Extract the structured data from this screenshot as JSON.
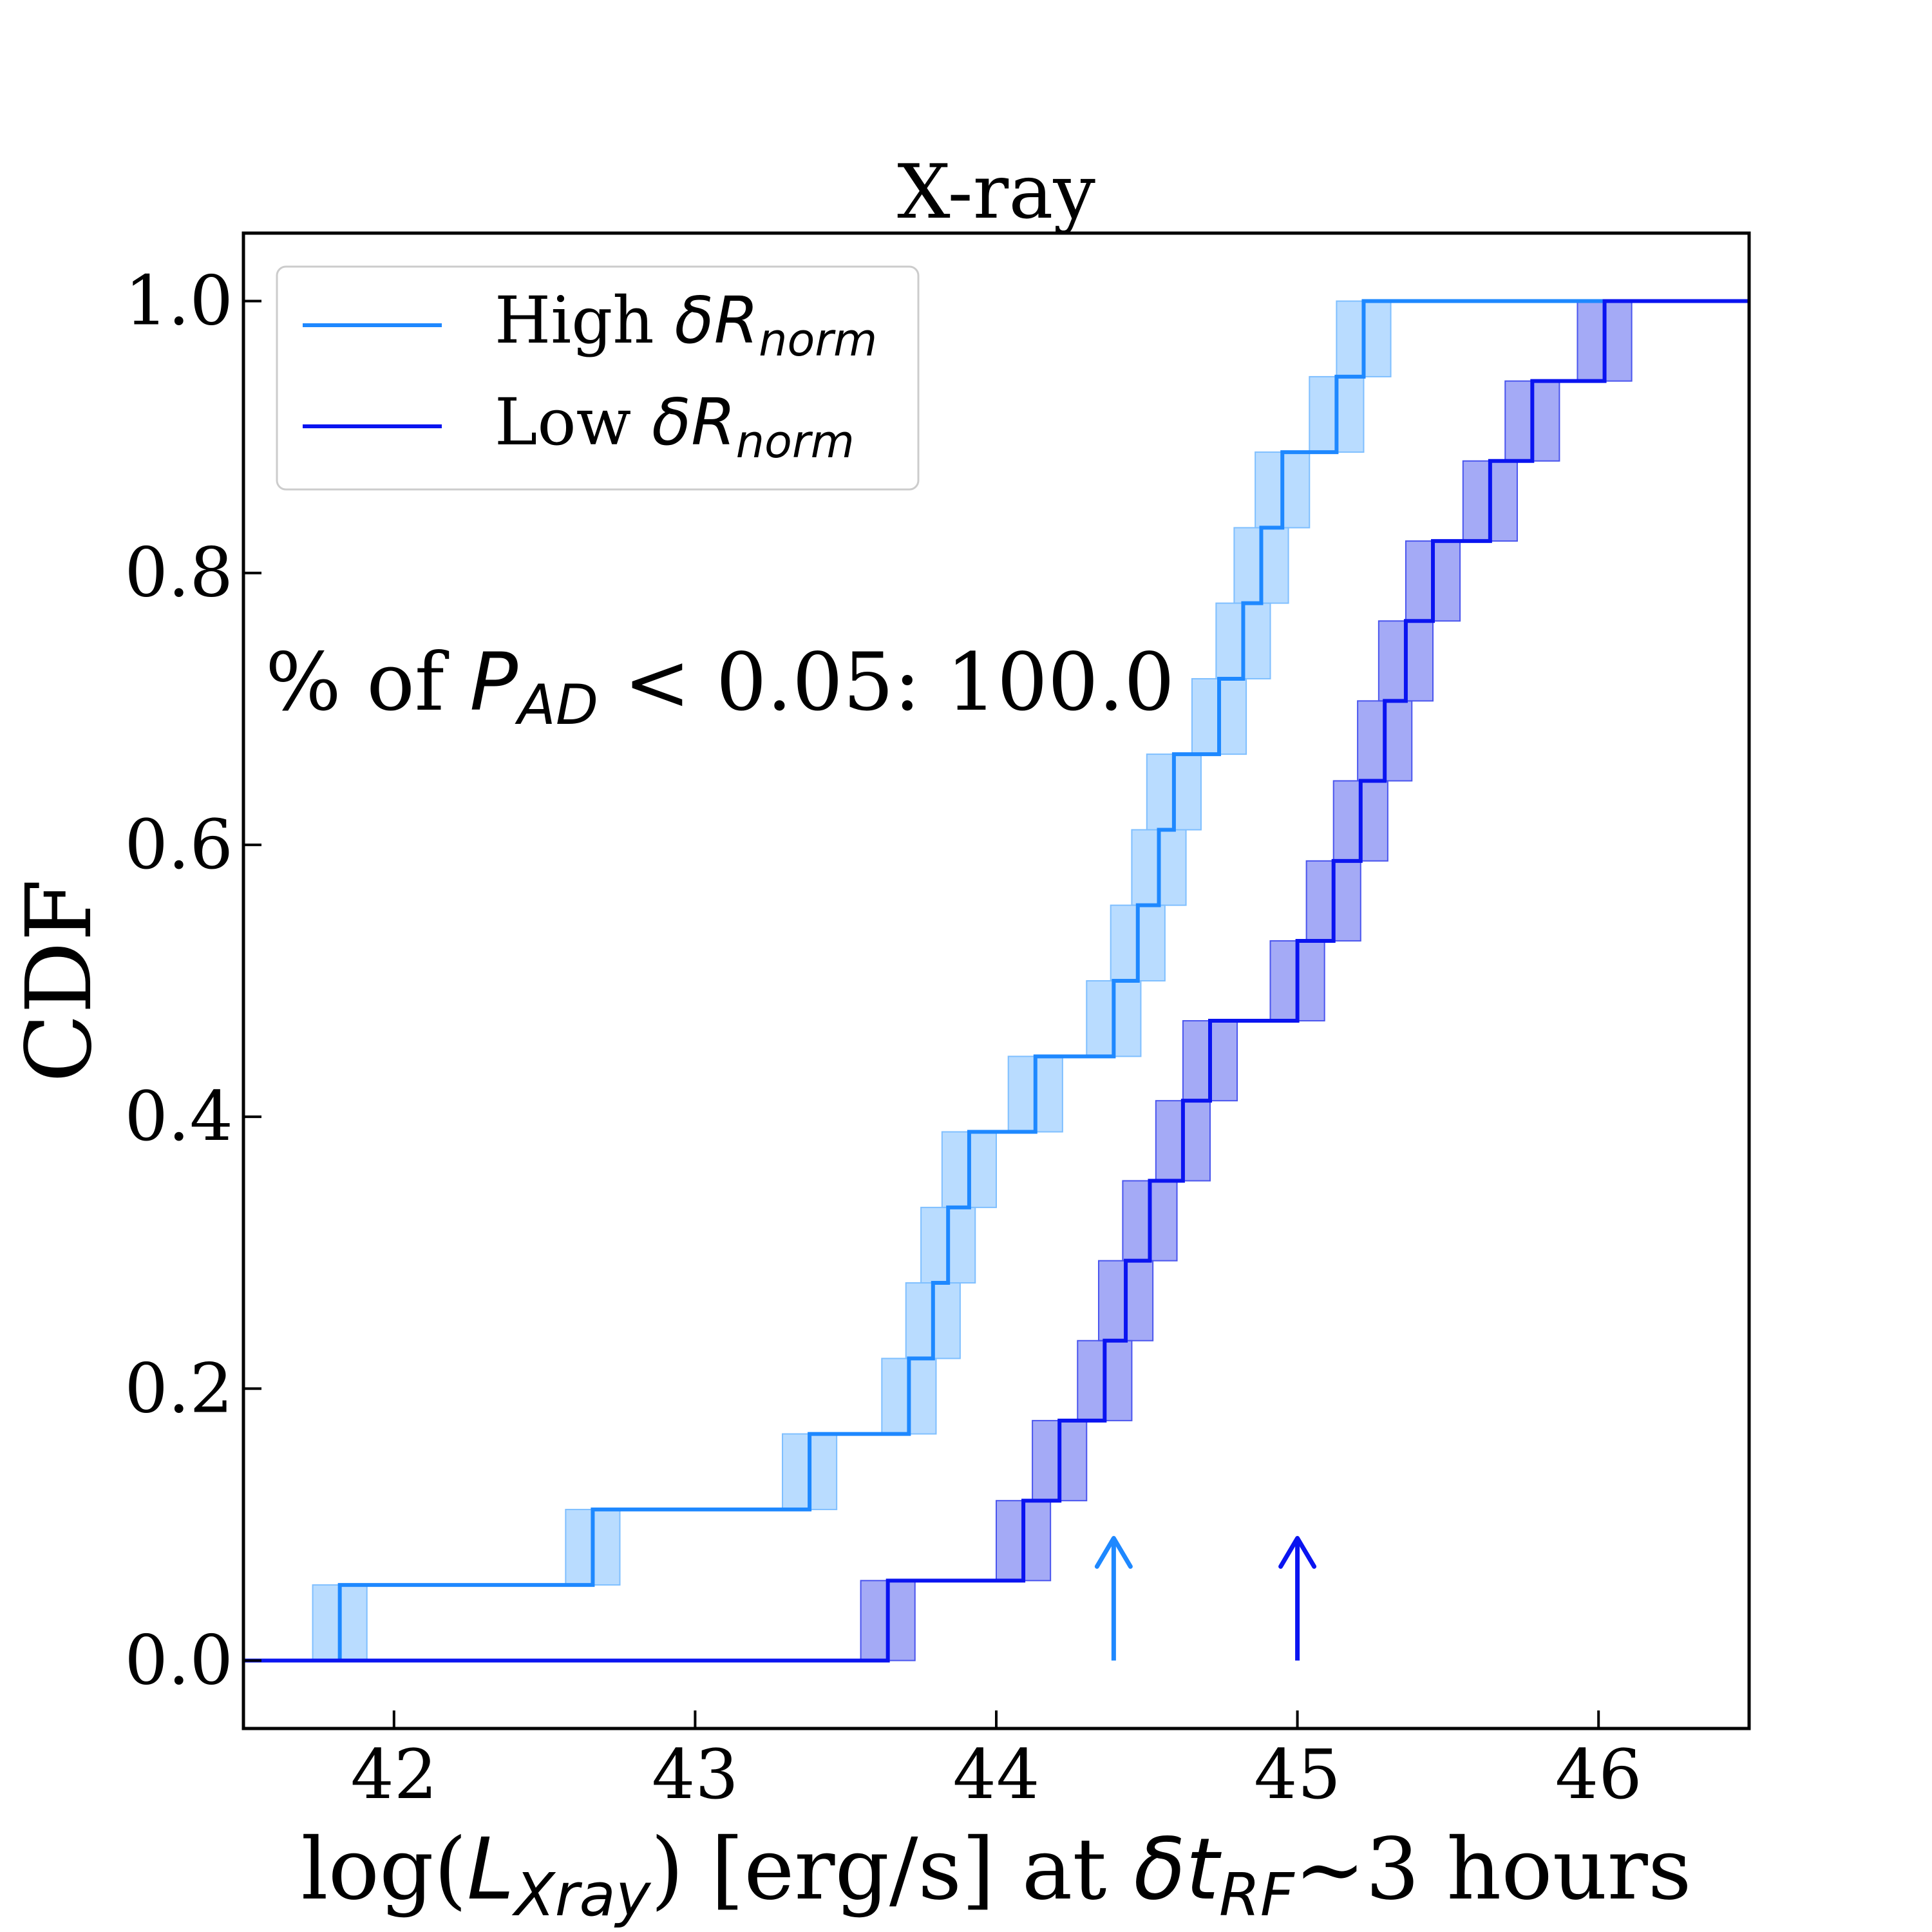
{
  "chart_data": {
    "type": "line",
    "step": "post",
    "title": "X-ray",
    "ylabel": "CDF",
    "xlabel": {
      "prefix": "log(",
      "var": "L",
      "var_sub": "Xray",
      "middle": ") [erg/s] at ",
      "delta_var": "δt",
      "delta_sub": "RF",
      "suffix": "~3 hours"
    },
    "xlim": [
      41.5,
      46.5
    ],
    "ylim": [
      -0.05,
      1.05
    ],
    "xticks": [
      42,
      43,
      44,
      45,
      46
    ],
    "xtick_labels": [
      "42",
      "43",
      "44",
      "45",
      "46"
    ],
    "yticks": [
      0.0,
      0.2,
      0.4,
      0.6,
      0.8,
      1.0
    ],
    "ytick_labels": [
      "0.0",
      "0.2",
      "0.4",
      "0.6",
      "0.8",
      "1.0"
    ],
    "grid": false,
    "legend_position": "upper left",
    "annotation": {
      "prefix": "% of ",
      "var": "P",
      "var_sub": "AD",
      "suffix": " < 0.05: 100.0"
    },
    "series": [
      {
        "key": "high",
        "legend": {
          "prefix": "High ",
          "var": "δR",
          "sub": "norm"
        },
        "color": "#1e88ff",
        "band_color": "#7fbfff",
        "band_width": 0.09,
        "steps": [
          [
            41.82,
            0.0556
          ],
          [
            42.66,
            0.1111
          ],
          [
            43.38,
            0.1667
          ],
          [
            43.71,
            0.2222
          ],
          [
            43.79,
            0.2778
          ],
          [
            43.84,
            0.3333
          ],
          [
            43.91,
            0.3889
          ],
          [
            44.13,
            0.4444
          ],
          [
            44.39,
            0.5
          ],
          [
            44.47,
            0.5556
          ],
          [
            44.54,
            0.6111
          ],
          [
            44.59,
            0.6667
          ],
          [
            44.74,
            0.7222
          ],
          [
            44.82,
            0.7778
          ],
          [
            44.88,
            0.8333
          ],
          [
            44.95,
            0.8889
          ],
          [
            45.13,
            0.9444
          ],
          [
            45.22,
            1.0
          ]
        ]
      },
      {
        "key": "low",
        "legend": {
          "prefix": "Low ",
          "var": "δR",
          "sub": "norm"
        },
        "color": "#0a14f0",
        "band_color": "#4a55ee",
        "band_width": 0.09,
        "steps": [
          [
            43.64,
            0.0588
          ],
          [
            44.09,
            0.1176
          ],
          [
            44.21,
            0.1765
          ],
          [
            44.36,
            0.2353
          ],
          [
            44.43,
            0.2941
          ],
          [
            44.51,
            0.3529
          ],
          [
            44.62,
            0.4118
          ],
          [
            44.71,
            0.4706
          ],
          [
            45.0,
            0.5294
          ],
          [
            45.12,
            0.5882
          ],
          [
            45.21,
            0.6471
          ],
          [
            45.29,
            0.7059
          ],
          [
            45.36,
            0.7647
          ],
          [
            45.45,
            0.8235
          ],
          [
            45.64,
            0.8824
          ],
          [
            45.78,
            0.9412
          ],
          [
            46.02,
            1.0
          ]
        ]
      }
    ],
    "arrows": [
      {
        "series": "high",
        "x": 44.39
      },
      {
        "series": "low",
        "x": 45.0
      }
    ]
  }
}
